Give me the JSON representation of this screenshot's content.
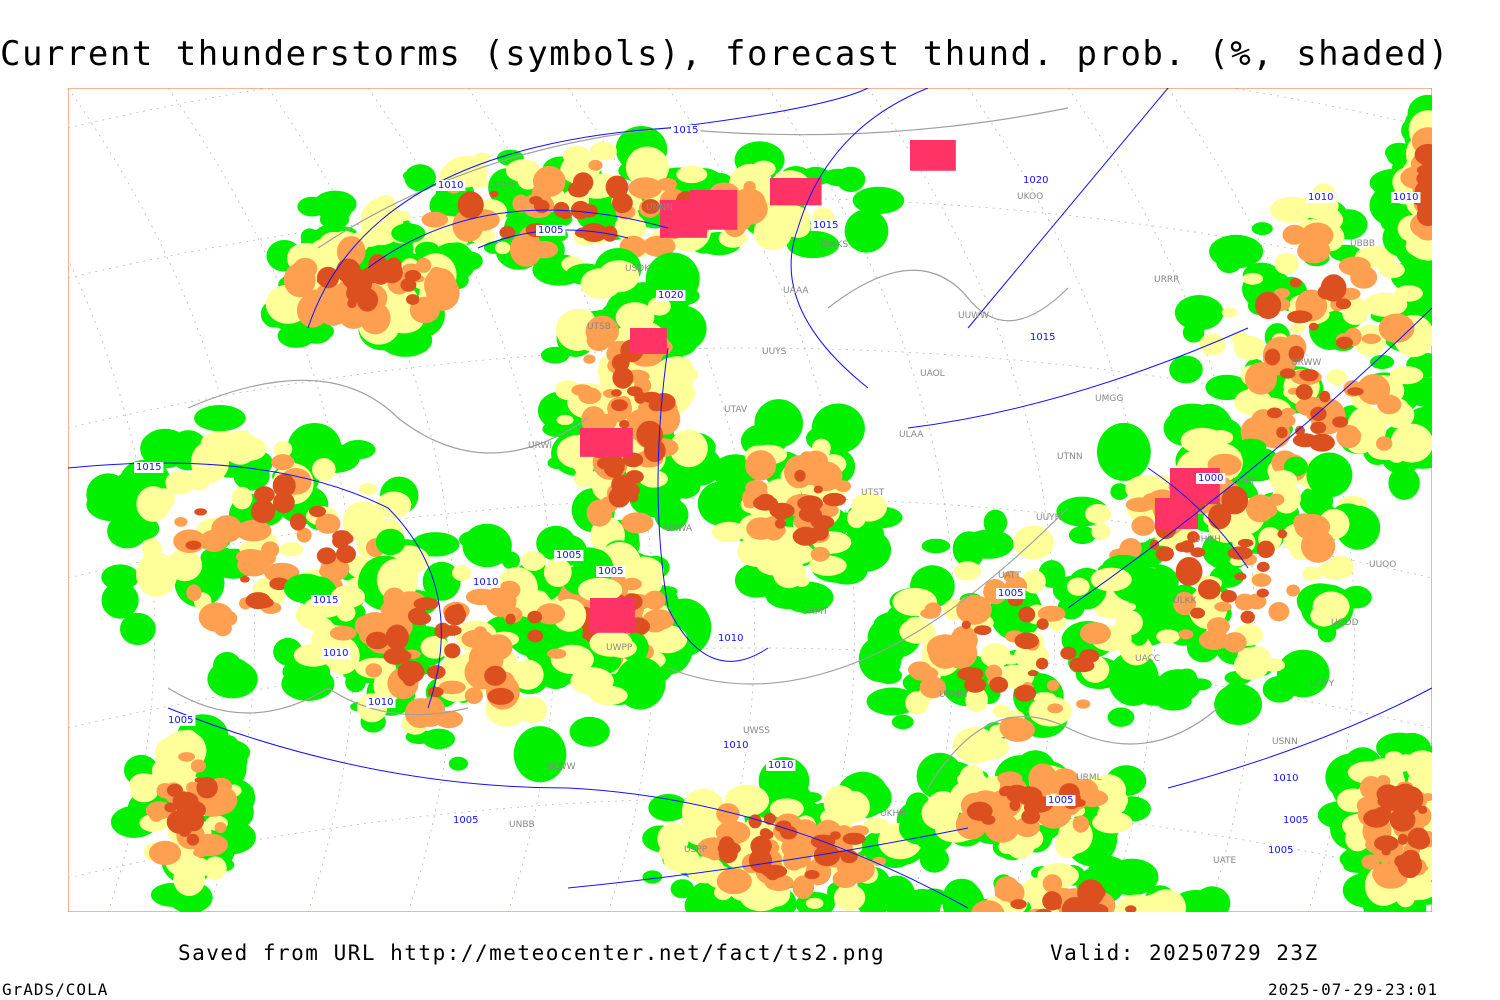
{
  "title": "Current thunderstorms (symbols), forecast thund. prob. (%, shaded)",
  "footer": {
    "saved_from": "Saved from URL http://meteocenter.net/fact/ts2.png",
    "valid": "Valid: 20250729 23Z",
    "software": "GrADS/COLA",
    "timestamp": "2025-07-29-23:01"
  },
  "colors": {
    "prob_low": "#00f000",
    "prob_mid": "#ffff99",
    "prob_high": "#ffa050",
    "prob_vhigh": "#dc5020",
    "storm_symbol": "#ff3366",
    "isobar": "#1010ff",
    "coastline": "#a0a0a0"
  },
  "isobar_labels": [
    "1015",
    "1010",
    "1005",
    "1020",
    "1015",
    "1010",
    "1015",
    "1020",
    "1015",
    "1000",
    "1010",
    "1005",
    "1015",
    "1010",
    "1010",
    "1005",
    "1005",
    "1010",
    "1005",
    "1010",
    "1005",
    "1005",
    "1010",
    "1005",
    "1010",
    "1010",
    "1005"
  ],
  "stations": [
    "ULDD",
    "USDK",
    "UUYS",
    "ULAA",
    "UUYH",
    "ULKK",
    "UUYY",
    "ULWW",
    "USPP",
    "UWKS",
    "UUWW",
    "UMGG",
    "UUBP",
    "UUOO",
    "UWPP",
    "UWSS",
    "UKHH",
    "UKOO",
    "URRR",
    "URWW",
    "URWI",
    "URWA",
    "URMT",
    "URMM",
    "URML",
    "UATE",
    "UBBB",
    "UTSB",
    "UTAV",
    "UTST",
    "UATT",
    "UACC",
    "USNN",
    "UNBB",
    "UNNN",
    "UAAA",
    "UAOL",
    "UTNN",
    "UHHH",
    "UODD"
  ]
}
